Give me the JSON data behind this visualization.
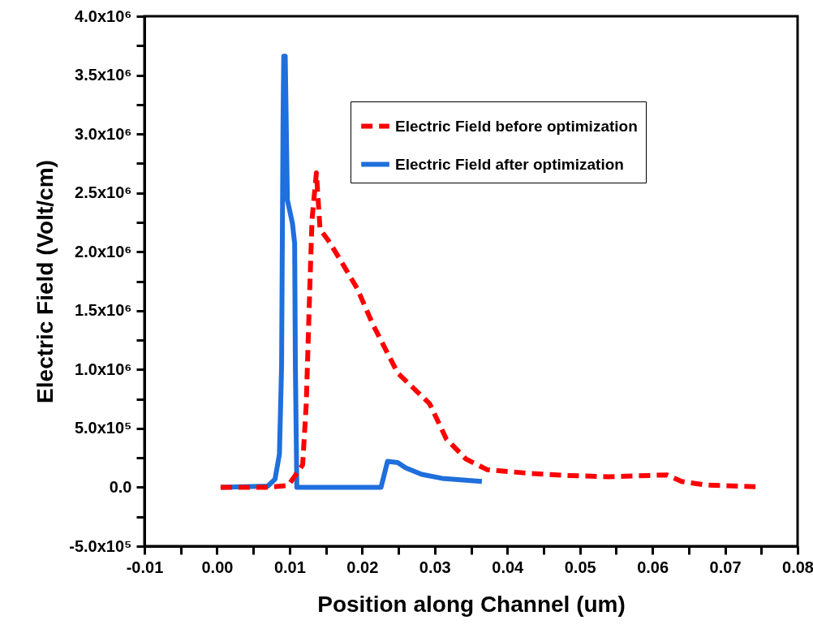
{
  "chart_data": {
    "type": "line",
    "xlabel": "Position along Channel (um)",
    "ylabel": "Electric Field  (Volt/cm)",
    "xlim": [
      -0.01,
      0.08
    ],
    "xticks": [
      {
        "value": -0.01,
        "label": "-0.01"
      },
      {
        "value": -0.005,
        "label": null
      },
      {
        "value": 0,
        "label": "0.00"
      },
      {
        "value": 0.005,
        "label": null
      },
      {
        "value": 0.01,
        "label": "0.01"
      },
      {
        "value": 0.015,
        "label": null
      },
      {
        "value": 0.02,
        "label": "0.02"
      },
      {
        "value": 0.025,
        "label": null
      },
      {
        "value": 0.03,
        "label": "0.03"
      },
      {
        "value": 0.035,
        "label": null
      },
      {
        "value": 0.04,
        "label": "0.04"
      },
      {
        "value": 0.045,
        "label": null
      },
      {
        "value": 0.05,
        "label": "0.05"
      },
      {
        "value": 0.055,
        "label": null
      },
      {
        "value": 0.06,
        "label": "0.06"
      },
      {
        "value": 0.065,
        "label": null
      },
      {
        "value": 0.07,
        "label": "0.07"
      },
      {
        "value": 0.075,
        "label": null
      },
      {
        "value": 0.08,
        "label": "0.08"
      }
    ],
    "ylim": [
      -500000,
      4000000
    ],
    "yticks": [
      {
        "value": -500000,
        "label": "-5.0x10⁵"
      },
      {
        "value": -250000,
        "label": null
      },
      {
        "value": 0,
        "label": "0.0"
      },
      {
        "value": 250000,
        "label": null
      },
      {
        "value": 500000,
        "label": "5.0x10⁵"
      },
      {
        "value": 750000,
        "label": null
      },
      {
        "value": 1000000,
        "label": "1.0x10⁶"
      },
      {
        "value": 1250000,
        "label": null
      },
      {
        "value": 1500000,
        "label": "1.5x10⁶"
      },
      {
        "value": 1750000,
        "label": null
      },
      {
        "value": 2000000,
        "label": "2.0x10⁶"
      },
      {
        "value": 2250000,
        "label": null
      },
      {
        "value": 2500000,
        "label": "2.5x10⁶"
      },
      {
        "value": 2750000,
        "label": null
      },
      {
        "value": 3000000,
        "label": "3.0x10⁶"
      },
      {
        "value": 3250000,
        "label": null
      },
      {
        "value": 3500000,
        "label": "3.5x10⁶"
      },
      {
        "value": 3750000,
        "label": null
      },
      {
        "value": 4000000,
        "label": "4.0x10⁶"
      }
    ],
    "grid": false,
    "legend": "top right",
    "marker": "none",
    "series": [
      {
        "name": "Electric Field before optimization",
        "color": "#ff0000",
        "line_style": "dashed",
        "x": [
          0.0005,
          0.007,
          0.0098,
          0.0118,
          0.0123,
          0.0128,
          0.0131,
          0.0137,
          0.0142,
          0.0153,
          0.017,
          0.0193,
          0.0215,
          0.0249,
          0.0293,
          0.0316,
          0.0343,
          0.0372,
          0.0427,
          0.0483,
          0.0539,
          0.0595,
          0.062,
          0.064,
          0.0673,
          0.0742
        ],
        "values": [
          0,
          0,
          15000,
          190000,
          710000,
          1720000,
          2280000,
          2670000,
          2190000,
          2100000,
          1930000,
          1690000,
          1380000,
          970000,
          710000,
          410000,
          240000,
          150000,
          120000,
          100000,
          90000,
          100000,
          105000,
          50000,
          20000,
          5000
        ]
      },
      {
        "name": "Electric Field after optimization",
        "color": "#1f6fdc",
        "line_style": "solid",
        "x": [
          0.0005,
          0.007,
          0.008,
          0.0086,
          0.0089,
          0.0091,
          0.0092,
          0.0094,
          0.0097,
          0.0104,
          0.0107,
          0.0108,
          0.011,
          0.0114,
          0.0226,
          0.0235,
          0.0249,
          0.026,
          0.0282,
          0.031,
          0.0365
        ],
        "values": [
          0,
          10000,
          70000,
          280000,
          1030000,
          3100000,
          3660000,
          3660000,
          2440000,
          2240000,
          2070000,
          1030000,
          0,
          0,
          0,
          220000,
          210000,
          165000,
          110000,
          76000,
          50000
        ]
      }
    ]
  }
}
